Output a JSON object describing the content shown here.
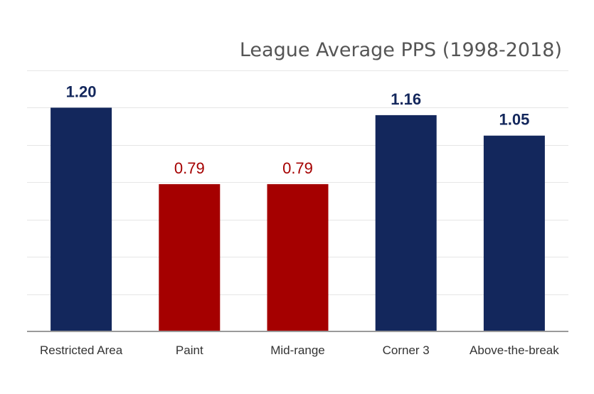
{
  "chart_data": {
    "type": "bar",
    "title": "League Average PPS (1998-2018)",
    "xlabel": "",
    "ylabel": "",
    "categories": [
      "Restricted Area",
      "Paint",
      "Mid-range",
      "Corner 3",
      "Above-the-break"
    ],
    "values": [
      1.2,
      0.79,
      0.79,
      1.16,
      1.05
    ],
    "value_labels": [
      "1.20",
      "0.79",
      "0.79",
      "1.16",
      "1.05"
    ],
    "colors": [
      "#13275c",
      "#a50000",
      "#a50000",
      "#13275c",
      "#13275c"
    ],
    "ylim": [
      0,
      1.4
    ],
    "grid": true,
    "legend": "none"
  }
}
